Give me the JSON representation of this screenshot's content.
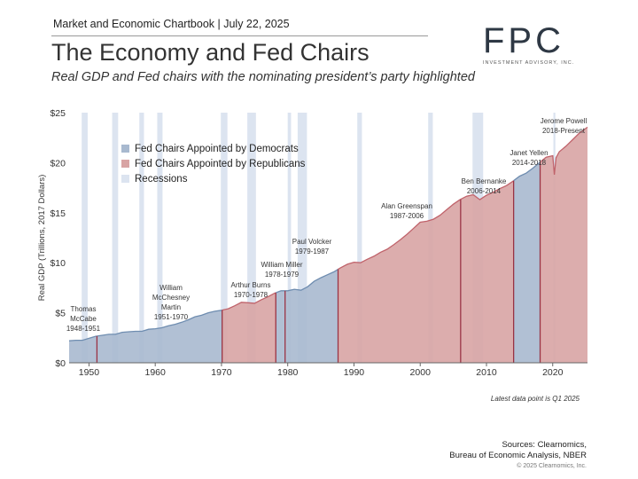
{
  "header": {
    "label": "Market and Economic Chartbook | July 22, 2025",
    "title": "The Economy and Fed Chairs",
    "subtitle": "Real GDP and Fed chairs with the nominating president’s party highlighted"
  },
  "logo": {
    "text": "FPC",
    "subtext": "INVESTMENT ADVISORY, INC."
  },
  "chart_data": {
    "type": "area",
    "ylabel": "Real GDP (Trillions, 2017 Dollars)",
    "xlim": [
      1947,
      2025.25
    ],
    "ylim": [
      0,
      25
    ],
    "y_ticks": [
      0,
      5,
      10,
      15,
      20,
      25
    ],
    "y_tick_labels": [
      "$0",
      "$5",
      "$10",
      "$15",
      "$20",
      "$25"
    ],
    "x_ticks": [
      1950,
      1960,
      1970,
      1980,
      1990,
      2000,
      2010,
      2020
    ],
    "x_tick_labels": [
      "1950",
      "1960",
      "1970",
      "1980",
      "1990",
      "2000",
      "2010",
      "2020"
    ],
    "grid": false,
    "legend_position": "top-left",
    "legend": [
      {
        "label": "Fed Chairs Appointed by Democrats",
        "color": "#a8b9cf"
      },
      {
        "label": "Fed Chairs Appointed by Republicans",
        "color": "#d8a4a4"
      },
      {
        "label": "Recessions",
        "color": "#dce4f0"
      }
    ],
    "colors": {
      "democrat_fill": "#a8b9cf",
      "democrat_line": "#6f8db0",
      "republican_fill": "#d8a4a4",
      "republican_line": "#c0636b",
      "recession": "#dce4f0",
      "divider": "#9a3344"
    },
    "recessions": [
      [
        1948.9,
        1949.8
      ],
      [
        1953.5,
        1954.4
      ],
      [
        1957.6,
        1958.3
      ],
      [
        1960.3,
        1961.1
      ],
      [
        1969.9,
        1970.9
      ],
      [
        1973.9,
        1975.2
      ],
      [
        1980.0,
        1980.5
      ],
      [
        1981.5,
        1982.9
      ],
      [
        1990.5,
        1991.2
      ],
      [
        2001.2,
        2001.9
      ],
      [
        2007.9,
        2009.5
      ],
      [
        2020.1,
        2020.4
      ]
    ],
    "chairs": [
      {
        "name": "Thomas McCabe",
        "years": "1948-1951",
        "start": 1947,
        "end": 1951.2,
        "party": "D"
      },
      {
        "name": "William McChesney Martin",
        "years": "1951-1970",
        "start": 1951.2,
        "end": 1970.1,
        "party": "D"
      },
      {
        "name": "Arthur Burns",
        "years": "1970-1978",
        "start": 1970.1,
        "end": 1978.2,
        "party": "R"
      },
      {
        "name": "William Miller",
        "years": "1978-1979",
        "start": 1978.2,
        "end": 1979.6,
        "party": "D"
      },
      {
        "name": "Paul Volcker",
        "years": "1979-1987",
        "start": 1979.6,
        "end": 1987.6,
        "party": "D"
      },
      {
        "name": "Alan Greenspan",
        "years": "1987-2006",
        "start": 1987.6,
        "end": 2006.1,
        "party": "R"
      },
      {
        "name": "Ben Bernanke",
        "years": "2006-2014",
        "start": 2006.1,
        "end": 2014.1,
        "party": "R"
      },
      {
        "name": "Janet Yellen",
        "years": "2014-2018",
        "start": 2014.1,
        "end": 2018.1,
        "party": "D"
      },
      {
        "name": "Jerome Powell",
        "years": "2018-Present",
        "start": 2018.1,
        "end": 2025.25,
        "party": "R"
      }
    ],
    "gdp_points": [
      [
        1947,
        2.2
      ],
      [
        1948,
        2.25
      ],
      [
        1949,
        2.25
      ],
      [
        1950,
        2.45
      ],
      [
        1951,
        2.65
      ],
      [
        1952,
        2.75
      ],
      [
        1953,
        2.85
      ],
      [
        1954,
        2.85
      ],
      [
        1955,
        3.05
      ],
      [
        1956,
        3.1
      ],
      [
        1957,
        3.15
      ],
      [
        1958,
        3.15
      ],
      [
        1959,
        3.35
      ],
      [
        1960,
        3.4
      ],
      [
        1961,
        3.5
      ],
      [
        1962,
        3.7
      ],
      [
        1963,
        3.85
      ],
      [
        1964,
        4.05
      ],
      [
        1965,
        4.3
      ],
      [
        1966,
        4.6
      ],
      [
        1967,
        4.75
      ],
      [
        1968,
        5.0
      ],
      [
        1969,
        5.15
      ],
      [
        1970,
        5.25
      ],
      [
        1971,
        5.4
      ],
      [
        1972,
        5.7
      ],
      [
        1973,
        6.05
      ],
      [
        1974,
        6.0
      ],
      [
        1975,
        5.95
      ],
      [
        1976,
        6.3
      ],
      [
        1977,
        6.6
      ],
      [
        1978,
        6.95
      ],
      [
        1979,
        7.2
      ],
      [
        1980,
        7.2
      ],
      [
        1981,
        7.35
      ],
      [
        1982,
        7.25
      ],
      [
        1983,
        7.6
      ],
      [
        1984,
        8.15
      ],
      [
        1985,
        8.5
      ],
      [
        1986,
        8.8
      ],
      [
        1987,
        9.1
      ],
      [
        1988,
        9.5
      ],
      [
        1989,
        9.85
      ],
      [
        1990,
        10.05
      ],
      [
        1991,
        10.0
      ],
      [
        1992,
        10.35
      ],
      [
        1993,
        10.65
      ],
      [
        1994,
        11.05
      ],
      [
        1995,
        11.35
      ],
      [
        1996,
        11.8
      ],
      [
        1997,
        12.3
      ],
      [
        1998,
        12.85
      ],
      [
        1999,
        13.45
      ],
      [
        2000,
        14.05
      ],
      [
        2001,
        14.15
      ],
      [
        2002,
        14.35
      ],
      [
        2003,
        14.75
      ],
      [
        2004,
        15.3
      ],
      [
        2005,
        15.85
      ],
      [
        2006,
        16.3
      ],
      [
        2007,
        16.65
      ],
      [
        2008,
        16.8
      ],
      [
        2009,
        16.3
      ],
      [
        2010,
        16.75
      ],
      [
        2011,
        17.05
      ],
      [
        2012,
        17.4
      ],
      [
        2013,
        17.7
      ],
      [
        2014,
        18.15
      ],
      [
        2015,
        18.65
      ],
      [
        2016,
        18.95
      ],
      [
        2017,
        19.45
      ],
      [
        2018,
        20.0
      ],
      [
        2019,
        20.55
      ],
      [
        2020.0,
        20.7
      ],
      [
        2020.25,
        18.8
      ],
      [
        2020.5,
        20.5
      ],
      [
        2021,
        21.1
      ],
      [
        2022,
        21.65
      ],
      [
        2023,
        22.3
      ],
      [
        2024,
        22.95
      ],
      [
        2025.25,
        23.55
      ]
    ],
    "note": "Latest data point is Q1 2025"
  },
  "footer": {
    "sources_line1": "Sources: Clearnomics,",
    "sources_line2": "Bureau of Economic Analysis, NBER",
    "copyright": "© 2025 Clearnomics, Inc."
  }
}
